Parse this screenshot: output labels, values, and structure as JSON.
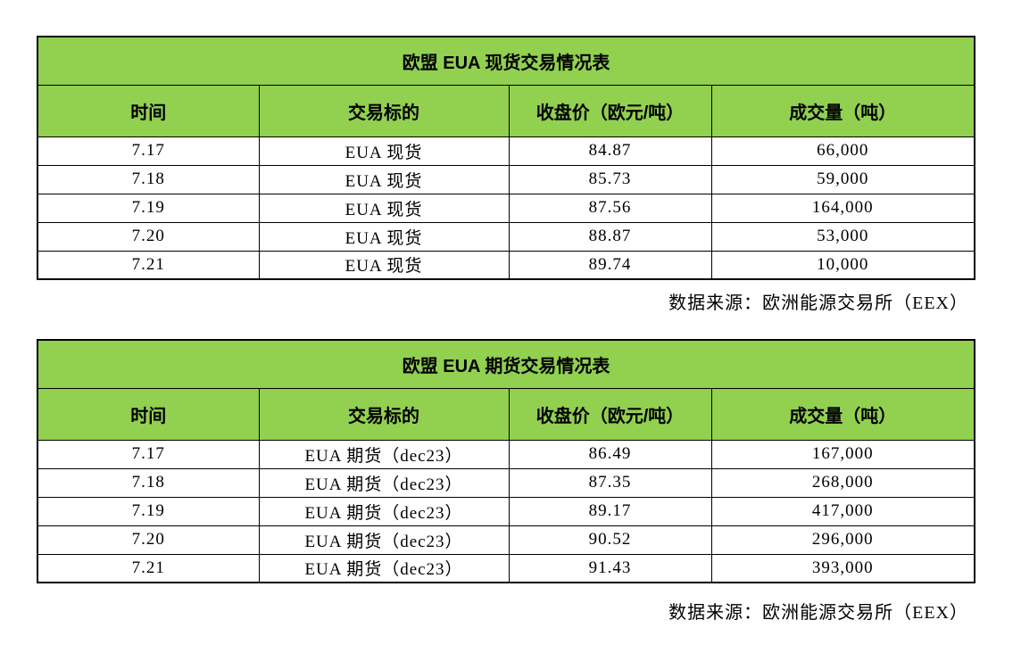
{
  "page": {
    "background": "#ffffff",
    "accent_green": "#92d050",
    "border_color": "#000000",
    "text_color": "#000000"
  },
  "tables": [
    {
      "title": "欧盟 EUA 现货交易情况表",
      "headers": [
        "时间",
        "交易标的",
        "收盘价（欧元/吨）",
        "成交量（吨）"
      ],
      "rows": [
        [
          "7.17",
          "EUA 现货",
          "84.87",
          "66,000"
        ],
        [
          "7.18",
          "EUA 现货",
          "85.73",
          "59,000"
        ],
        [
          "7.19",
          "EUA 现货",
          "87.56",
          "164,000"
        ],
        [
          "7.20",
          "EUA 现货",
          "88.87",
          "53,000"
        ],
        [
          "7.21",
          "EUA 现货",
          "89.74",
          "10,000"
        ]
      ],
      "source": "数据来源：欧洲能源交易所（EEX）"
    },
    {
      "title": "欧盟 EUA 期货交易情况表",
      "headers": [
        "时间",
        "交易标的",
        "收盘价（欧元/吨）",
        "成交量（吨）"
      ],
      "rows": [
        [
          "7.17",
          "EUA 期货（dec23）",
          "86.49",
          "167,000"
        ],
        [
          "7.18",
          "EUA 期货（dec23）",
          "87.35",
          "268,000"
        ],
        [
          "7.19",
          "EUA 期货（dec23）",
          "89.17",
          "417,000"
        ],
        [
          "7.20",
          "EUA 期货（dec23）",
          "90.52",
          "296,000"
        ],
        [
          "7.21",
          "EUA 期货（dec23）",
          "91.43",
          "393,000"
        ]
      ],
      "source": "数据来源：欧洲能源交易所（EEX）"
    }
  ],
  "chart_data": {
    "type": "table",
    "tables": [
      {
        "name": "EUA spot",
        "columns": [
          "date",
          "instrument",
          "close_price_eur_per_ton",
          "volume_tons"
        ],
        "records": [
          [
            "7.17",
            "EUA 现货",
            84.87,
            66000
          ],
          [
            "7.18",
            "EUA 现货",
            85.73,
            59000
          ],
          [
            "7.19",
            "EUA 现货",
            87.56,
            164000
          ],
          [
            "7.20",
            "EUA 现货",
            88.87,
            53000
          ],
          [
            "7.21",
            "EUA 现货",
            89.74,
            10000
          ]
        ]
      },
      {
        "name": "EUA futures dec23",
        "columns": [
          "date",
          "instrument",
          "close_price_eur_per_ton",
          "volume_tons"
        ],
        "records": [
          [
            "7.17",
            "EUA 期货（dec23）",
            86.49,
            167000
          ],
          [
            "7.18",
            "EUA 期货（dec23）",
            87.35,
            268000
          ],
          [
            "7.19",
            "EUA 期货（dec23）",
            89.17,
            417000
          ],
          [
            "7.20",
            "EUA 期货（dec23）",
            90.52,
            296000
          ],
          [
            "7.21",
            "EUA 期货（dec23）",
            91.43,
            393000
          ]
        ]
      }
    ]
  }
}
